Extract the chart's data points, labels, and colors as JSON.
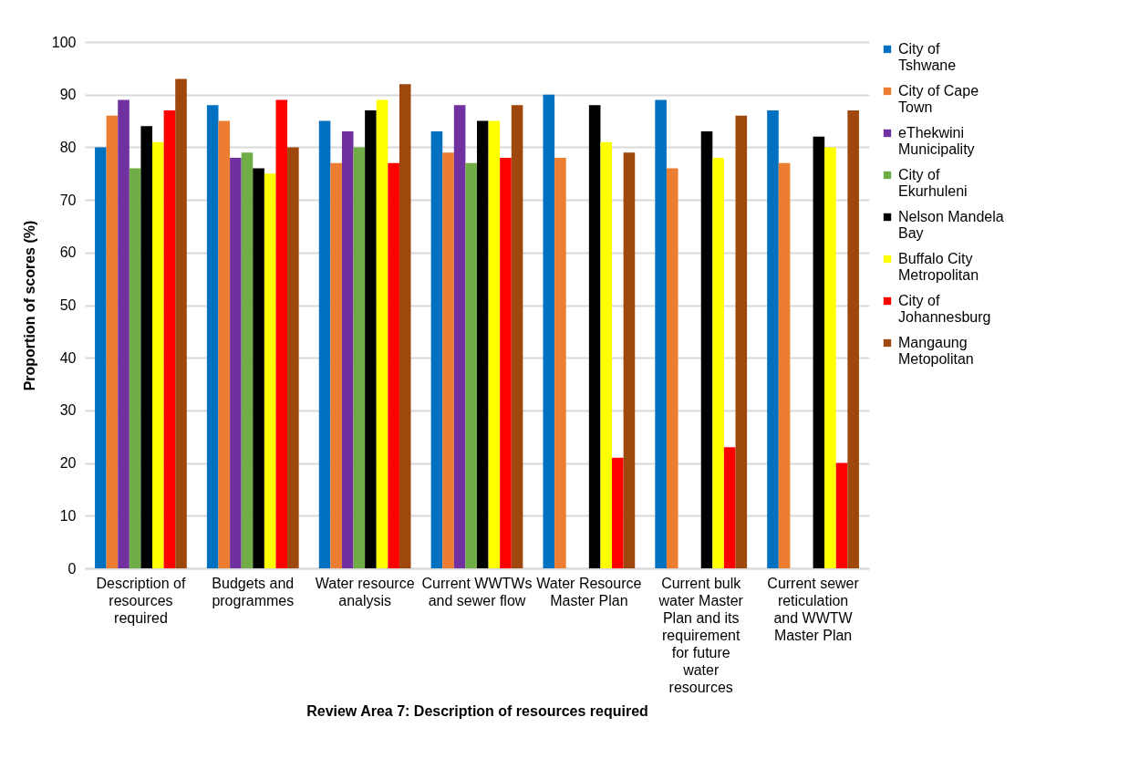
{
  "chart_data": {
    "type": "bar",
    "xlabel": "Review Area 7: Description of resources required",
    "ylabel": "Proportion of scores (%)",
    "categories": [
      "Description of resources required",
      "Budgets and programmes",
      "Water resource analysis",
      "Current WWTWs and sewer flow",
      "Water Resource Master Plan",
      "Current bulk water Master Plan and its requirement for future water resources",
      "Current sewer reticulation and WWTW Master Plan"
    ],
    "series": [
      {
        "name": "City of Tshwane",
        "color": "#0070c0",
        "values": [
          80,
          88,
          85,
          83,
          90,
          89,
          87
        ]
      },
      {
        "name": "City of Cape Town",
        "color": "#ed7d31",
        "values": [
          86,
          85,
          77,
          79,
          78,
          76,
          77
        ]
      },
      {
        "name": "eThekwini Municipality",
        "color": "#7030a0",
        "values": [
          89,
          78,
          83,
          88,
          null,
          null,
          null
        ]
      },
      {
        "name": "City of Ekurhuleni",
        "color": "#70ad47",
        "values": [
          76,
          79,
          80,
          77,
          null,
          null,
          null
        ]
      },
      {
        "name": "Nelson Mandela Bay",
        "color": "#000000",
        "values": [
          84,
          76,
          87,
          85,
          88,
          83,
          82
        ]
      },
      {
        "name": "Buffalo City Metropolitan",
        "color": "#ffff00",
        "values": [
          81,
          75,
          89,
          85,
          81,
          78,
          80
        ]
      },
      {
        "name": "City of Johannesburg",
        "color": "#ff0000",
        "values": [
          87,
          89,
          77,
          78,
          21,
          23,
          20
        ]
      },
      {
        "name": "Mangaung Metopolitan",
        "color": "#9e480e",
        "values": [
          93,
          80,
          92,
          88,
          79,
          86,
          87
        ]
      }
    ],
    "ylim": [
      0,
      100
    ],
    "yticks": [
      0,
      10,
      20,
      30,
      40,
      50,
      60,
      70,
      80,
      90,
      100
    ],
    "grid": "y",
    "legend": "right"
  }
}
